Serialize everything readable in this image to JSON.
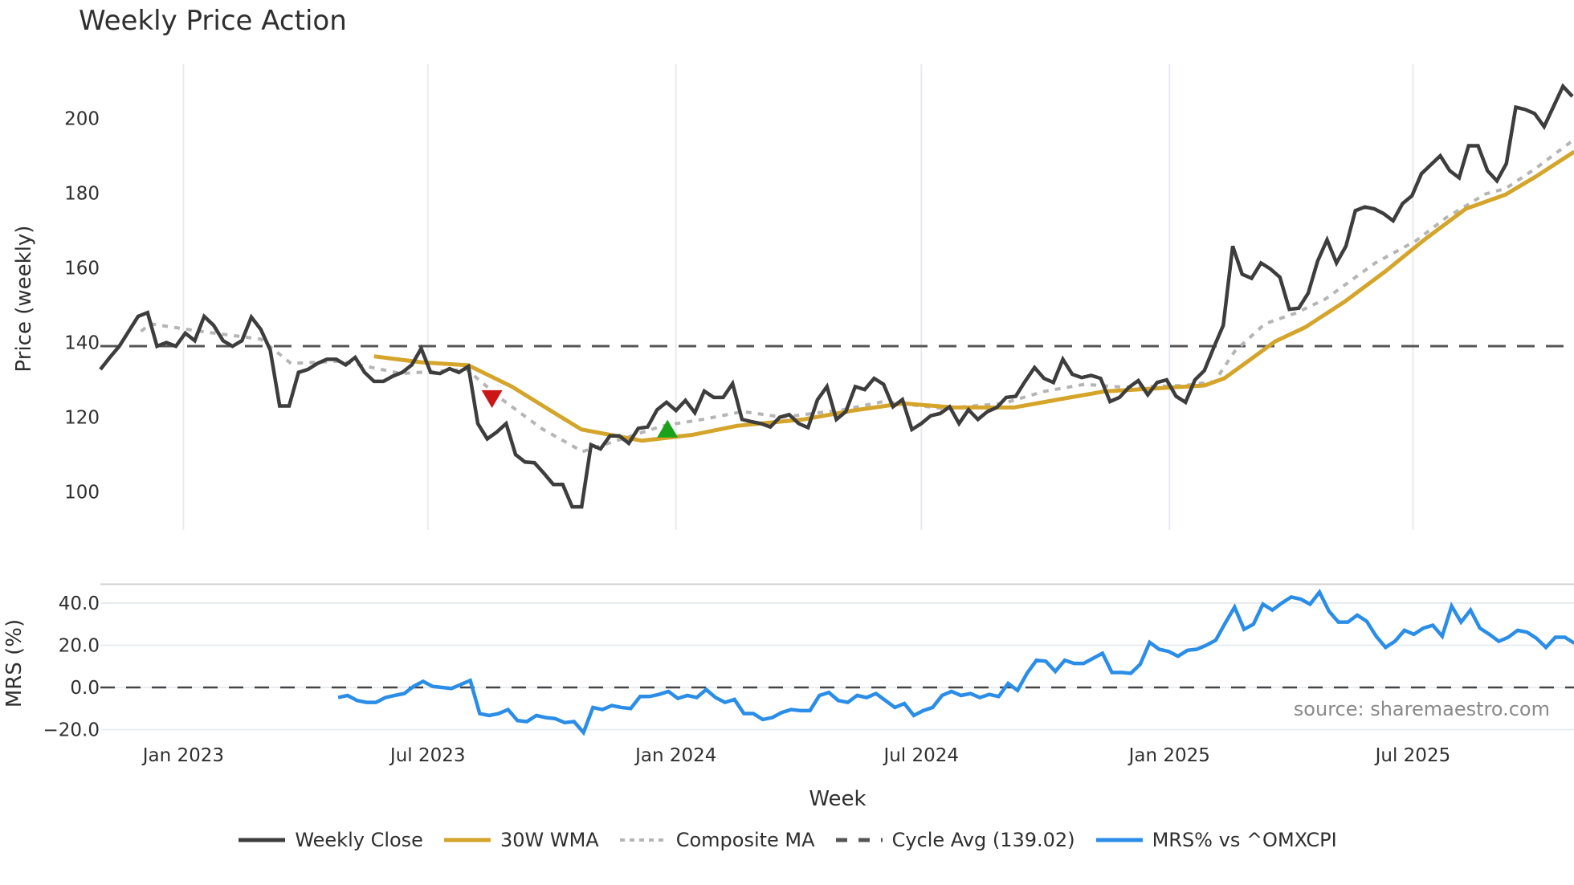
{
  "chart_data": {
    "type": "line",
    "title": "Weekly Price Action",
    "xlabel": "Week",
    "panels": [
      {
        "name": "price",
        "ylabel": "Price (weekly)",
        "yticks": [
          100,
          120,
          140,
          160,
          180,
          200
        ],
        "ylim": [
          88,
          215
        ],
        "grid": "vertical-only"
      },
      {
        "name": "mrs",
        "ylabel": "MRS (%)",
        "yticks": [
          "-20.0",
          "0.0",
          "20.0",
          "40.0"
        ],
        "ylim": [
          -25,
          49
        ],
        "grid": "horizontal"
      }
    ],
    "xticks": [
      "Jan 2023",
      "Jul 2023",
      "Jan 2024",
      "Jul 2024",
      "Jan 2025",
      "Jul 2025"
    ],
    "xtick_weeks": [
      8.8,
      34.7,
      61.0,
      87.0,
      113.3,
      139.1
    ],
    "legend": [
      {
        "label": "Weekly Close",
        "color": "#3d3d3d",
        "style": "solid"
      },
      {
        "label": "30W WMA",
        "color": "#d4a52a",
        "style": "solid"
      },
      {
        "label": "Composite MA",
        "color": "#b5b5b5",
        "style": "dotted"
      },
      {
        "label": "Cycle Avg (139.02)",
        "color": "#555555",
        "style": "dashed"
      },
      {
        "label": "MRS% vs ^OMXCPI",
        "color": "#2a8de8",
        "style": "solid"
      }
    ],
    "cycle_avg": 139.02,
    "series": [
      {
        "name": "Weekly Close",
        "start_week": 0,
        "values": [
          132.8,
          136,
          139,
          143,
          147,
          148,
          139,
          140,
          139,
          142.5,
          140.5,
          147,
          144.6,
          140.5,
          139,
          140.5,
          146.8,
          143.5,
          138,
          123,
          123,
          132,
          132.8,
          134.4,
          135.5,
          135.5,
          134,
          136,
          132,
          129.6,
          129.6,
          131,
          132,
          134,
          138.4,
          132,
          131.7,
          133,
          132,
          133.6,
          118.3,
          114.2,
          116,
          118.3,
          110,
          108,
          107.8,
          105,
          102,
          102,
          96,
          96,
          112.6,
          111.5,
          115,
          115,
          113,
          117,
          117.4,
          122,
          124,
          121.8,
          124.5,
          121.2,
          127,
          125.3,
          125.3,
          129,
          119.4,
          118.8,
          118.3,
          117.4,
          120,
          120.7,
          118.3,
          117.2,
          124.7,
          128.2,
          119.4,
          121.5,
          128.2,
          127.4,
          130.4,
          128.8,
          122.8,
          124.7,
          116.7,
          118.3,
          120.4,
          121,
          122.8,
          118.3,
          122,
          119.4,
          121.5,
          122.6,
          125.3,
          125.6,
          129.6,
          133.3,
          130.4,
          129.3,
          135.5,
          131.5,
          130.6,
          131.2,
          130.4,
          124.2,
          125.3,
          128,
          129.8,
          126,
          129.3,
          130,
          125.6,
          124,
          130,
          132.5,
          138.7,
          144.6,
          165.8,
          158.3,
          157.2,
          161.3,
          159.7,
          157.5,
          148.9,
          149.2,
          153.2,
          161.8,
          167.5,
          161.3,
          165.8,
          175.3,
          176.3,
          175.8,
          174.5,
          172.6,
          177.2,
          179.3,
          185.2,
          187.6,
          190,
          186,
          184.1,
          192.7,
          192.7,
          186,
          183.3,
          187.9,
          203,
          202.4,
          201.3,
          197.8,
          203.2,
          208.6,
          205.9
        ]
      },
      {
        "name": "30W WMA",
        "points": [
          [
            29,
            136.3
          ],
          [
            34,
            134.7
          ],
          [
            39,
            133.9
          ],
          [
            43.6,
            128.2
          ],
          [
            48.4,
            120.7
          ],
          [
            51,
            116.7
          ],
          [
            57.4,
            113.7
          ],
          [
            62.8,
            115.3
          ],
          [
            67.5,
            117.7
          ],
          [
            74.5,
            119.4
          ],
          [
            79.8,
            121.8
          ],
          [
            85.1,
            123.7
          ],
          [
            90.4,
            122.6
          ],
          [
            96.8,
            122.6
          ],
          [
            102.1,
            125
          ],
          [
            106.4,
            126.9
          ],
          [
            111.7,
            127.7
          ],
          [
            117,
            128.5
          ],
          [
            119.1,
            130.4
          ],
          [
            121.3,
            134.4
          ],
          [
            124.5,
            140.3
          ],
          [
            127.7,
            144.1
          ],
          [
            131.9,
            151
          ],
          [
            136.2,
            159.1
          ],
          [
            140.4,
            167.7
          ],
          [
            144.7,
            175.8
          ],
          [
            148.9,
            179.6
          ],
          [
            152.1,
            184.4
          ],
          [
            156.2,
            191.1
          ]
        ]
      },
      {
        "name": "Composite MA",
        "points": [
          [
            4.3,
            143
          ],
          [
            5.3,
            145
          ],
          [
            10.6,
            143
          ],
          [
            17,
            140.9
          ],
          [
            20.2,
            134.4
          ],
          [
            25.5,
            135
          ],
          [
            31.9,
            131.7
          ],
          [
            38.8,
            132.8
          ],
          [
            42.6,
            124.7
          ],
          [
            46.8,
            116.9
          ],
          [
            51.1,
            110.8
          ],
          [
            55.3,
            114.2
          ],
          [
            59.6,
            117.7
          ],
          [
            63.8,
            119.4
          ],
          [
            68.1,
            121.5
          ],
          [
            72.3,
            120
          ],
          [
            78.7,
            122
          ],
          [
            83,
            124.2
          ],
          [
            89.4,
            122.3
          ],
          [
            95.7,
            123.7
          ],
          [
            100,
            126.9
          ],
          [
            104.3,
            128.8
          ],
          [
            108.5,
            128
          ],
          [
            115,
            128.5
          ],
          [
            118.1,
            129.6
          ],
          [
            120.2,
            137.6
          ],
          [
            123.4,
            145
          ],
          [
            126.6,
            147.8
          ],
          [
            129.8,
            151.6
          ],
          [
            135.1,
            161.3
          ],
          [
            139.4,
            167.2
          ],
          [
            142.6,
            173.4
          ],
          [
            146.8,
            179.8
          ],
          [
            148.9,
            181.2
          ],
          [
            152.1,
            186.6
          ],
          [
            156.2,
            194.4
          ]
        ]
      },
      {
        "name": "MRS% vs ^OMXCPI",
        "start_week": 25.2,
        "values": [
          -4.8,
          -3.8,
          -6.2,
          -7.1,
          -7.1,
          -4.8,
          -3.8,
          -2.9,
          0.5,
          2.9,
          0.5,
          0,
          -0.5,
          1.4,
          3.3,
          -12.4,
          -13.3,
          -12.4,
          -10.5,
          -15.7,
          -16.2,
          -13.3,
          -14.3,
          -14.8,
          -16.7,
          -16.2,
          -21.4,
          -9.5,
          -10.5,
          -8.6,
          -9.5,
          -10,
          -4.3,
          -4.3,
          -3.3,
          -1.9,
          -5.2,
          -3.8,
          -4.8,
          -1,
          -4.8,
          -7.1,
          -5.7,
          -12.4,
          -12.4,
          -15.2,
          -14.3,
          -11.9,
          -10.5,
          -11,
          -11,
          -3.8,
          -2.4,
          -6.2,
          -7.1,
          -3.8,
          -4.8,
          -2.9,
          -6.2,
          -9.5,
          -7.6,
          -13.3,
          -11,
          -9.5,
          -3.8,
          -1.9,
          -3.8,
          -2.9,
          -4.8,
          -3.3,
          -4.3,
          1.9,
          -1.4,
          6.7,
          12.9,
          12.4,
          7.6,
          12.9,
          11.4,
          11.4,
          13.8,
          16.2,
          7.1,
          7.1,
          6.7,
          11,
          21.4,
          18.1,
          17.1,
          14.8,
          17.6,
          18.1,
          20,
          22.4,
          30.5,
          38.1,
          27.6,
          30,
          39.5,
          36.7,
          40,
          42.9,
          41.9,
          39.5,
          45.2,
          36.2,
          31,
          31,
          34.3,
          31.4,
          24.3,
          19,
          21.9,
          27.1,
          25.2,
          28.1,
          29.5,
          24.3,
          38.6,
          31,
          36.7,
          28.1,
          25.2,
          21.9,
          23.8,
          27.1,
          26.2,
          23.3,
          19,
          23.8,
          23.8,
          21
        ]
      }
    ],
    "markers": [
      {
        "type": "sell",
        "shape": "triangle-down",
        "color": "#cc1515",
        "week": 41.5,
        "value": 125
      },
      {
        "type": "buy",
        "shape": "triangle-up",
        "color": "#1aa31a",
        "week": 60.1,
        "value": 116.8
      }
    ],
    "annotations": [
      "source: sharemaestro.com"
    ]
  }
}
